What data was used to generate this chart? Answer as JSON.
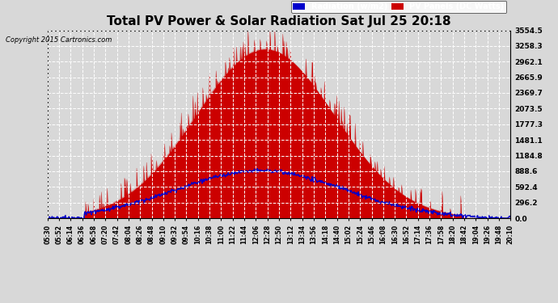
{
  "title": "Total PV Power & Solar Radiation Sat Jul 25 20:18",
  "copyright": "Copyright 2015 Cartronics.com",
  "legend_labels": [
    "Radiation (w/m2)",
    "PV Panels (DC Watts)"
  ],
  "legend_colors": [
    "#0000cc",
    "#cc0000"
  ],
  "legend_text_color": [
    "#ffffff",
    "#ffffff"
  ],
  "y_ticks": [
    0.0,
    296.2,
    592.4,
    888.6,
    1184.8,
    1481.1,
    1777.3,
    2073.5,
    2369.7,
    2665.9,
    2962.1,
    3258.3,
    3554.5
  ],
  "y_max": 3554.5,
  "background_color": "#d8d8d8",
  "plot_bg_color": "#d8d8d8",
  "grid_color": "#ffffff",
  "red_color": "#cc0000",
  "blue_color": "#0000cc",
  "x_labels": [
    "05:30",
    "05:52",
    "06:14",
    "06:36",
    "06:58",
    "07:20",
    "07:42",
    "08:04",
    "08:26",
    "08:48",
    "09:10",
    "09:32",
    "09:54",
    "10:16",
    "10:38",
    "11:00",
    "11:22",
    "11:44",
    "12:06",
    "12:28",
    "12:50",
    "13:12",
    "13:34",
    "13:56",
    "14:18",
    "14:40",
    "15:02",
    "15:24",
    "15:46",
    "16:08",
    "16:30",
    "16:52",
    "17:14",
    "17:36",
    "17:58",
    "18:20",
    "18:42",
    "19:04",
    "19:26",
    "19:48",
    "20:10"
  ]
}
